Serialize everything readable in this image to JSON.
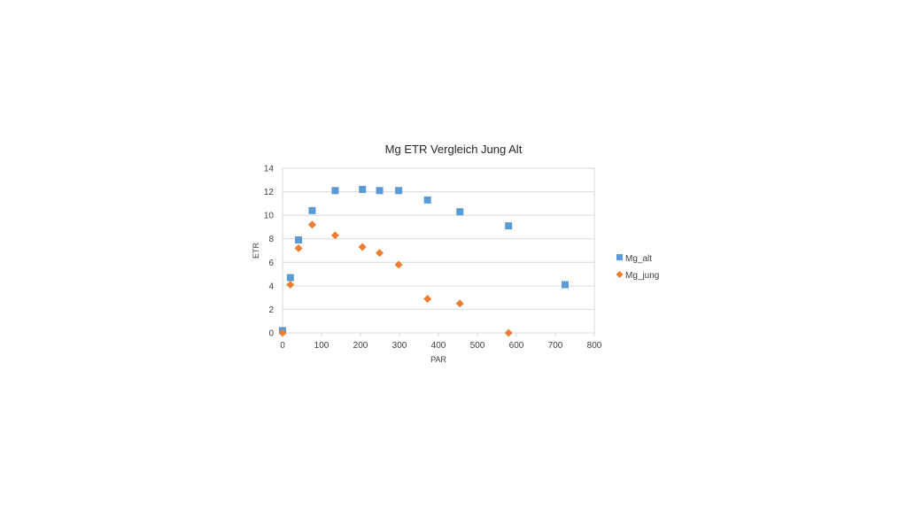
{
  "chart_data": {
    "type": "scatter",
    "title": "Mg ETR Vergleich Jung Alt",
    "xlabel": "PAR",
    "ylabel": "ETR",
    "xlim": [
      0,
      800
    ],
    "ylim": [
      0,
      14
    ],
    "x_ticks": [
      "0",
      "100",
      "200",
      "300",
      "400",
      "500",
      "600",
      "700",
      "800"
    ],
    "y_ticks": [
      "0",
      "2",
      "4",
      "6",
      "8",
      "10",
      "12",
      "14"
    ],
    "grid": "horizontal",
    "legend_position": "right",
    "series": [
      {
        "name": "Mg_alt",
        "marker": "square",
        "color": "#5b9bd5",
        "points": [
          {
            "x": 0,
            "y": 0.2
          },
          {
            "x": 20,
            "y": 4.7
          },
          {
            "x": 41,
            "y": 7.9
          },
          {
            "x": 76,
            "y": 10.4
          },
          {
            "x": 135,
            "y": 12.1
          },
          {
            "x": 205,
            "y": 12.2
          },
          {
            "x": 249,
            "y": 12.1
          },
          {
            "x": 298,
            "y": 12.1
          },
          {
            "x": 372,
            "y": 11.3
          },
          {
            "x": 455,
            "y": 10.3
          },
          {
            "x": 580,
            "y": 9.1
          },
          {
            "x": 725,
            "y": 4.1
          }
        ]
      },
      {
        "name": "Mg_jung",
        "marker": "diamond",
        "color": "#ed7d31",
        "points": [
          {
            "x": 0,
            "y": 0.0
          },
          {
            "x": 20,
            "y": 4.1
          },
          {
            "x": 41,
            "y": 7.2
          },
          {
            "x": 76,
            "y": 9.2
          },
          {
            "x": 135,
            "y": 8.3
          },
          {
            "x": 205,
            "y": 7.3
          },
          {
            "x": 249,
            "y": 6.8
          },
          {
            "x": 298,
            "y": 5.8
          },
          {
            "x": 372,
            "y": 2.9
          },
          {
            "x": 455,
            "y": 2.5
          },
          {
            "x": 580,
            "y": 0.0
          }
        ]
      }
    ]
  }
}
